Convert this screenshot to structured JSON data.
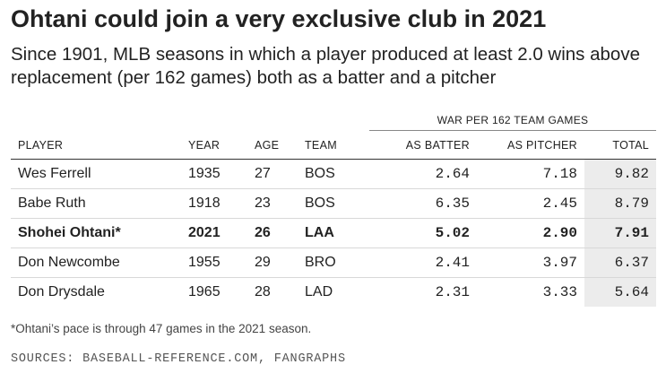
{
  "title": "Ohtani could join a very exclusive club in 2021",
  "subtitle": "Since 1901, MLB seasons in which a player produced at least 2.0 wins above replacement (per 162 games) both as a batter and a pitcher",
  "group_header": "WAR PER 162 TEAM GAMES",
  "footnote": "*Ohtani’s pace is through 47 games in the 2021 season.",
  "sources": "SOURCES: BASEBALL-REFERENCE.COM, FANGRAPHS",
  "colors": {
    "total_column_bg": "#ececec",
    "text": "#222222",
    "row_divider": "#d8d8d8"
  },
  "chart_data": {
    "type": "table",
    "columns": [
      "PLAYER",
      "YEAR",
      "AGE",
      "TEAM",
      "AS BATTER",
      "AS PITCHER",
      "TOTAL"
    ],
    "highlighted_row": 2,
    "rows": [
      [
        "Wes Ferrell",
        "1935",
        "27",
        "BOS",
        "2.64",
        "7.18",
        "9.82"
      ],
      [
        "Babe Ruth",
        "1918",
        "23",
        "BOS",
        "6.35",
        "2.45",
        "8.79"
      ],
      [
        "Shohei Ohtani*",
        "2021",
        "26",
        "LAA",
        "5.02",
        "2.90",
        "7.91"
      ],
      [
        "Don Newcombe",
        "1955",
        "29",
        "BRO",
        "2.41",
        "3.97",
        "6.37"
      ],
      [
        "Don Drysdale",
        "1965",
        "28",
        "LAD",
        "2.31",
        "3.33",
        "5.64"
      ]
    ]
  }
}
